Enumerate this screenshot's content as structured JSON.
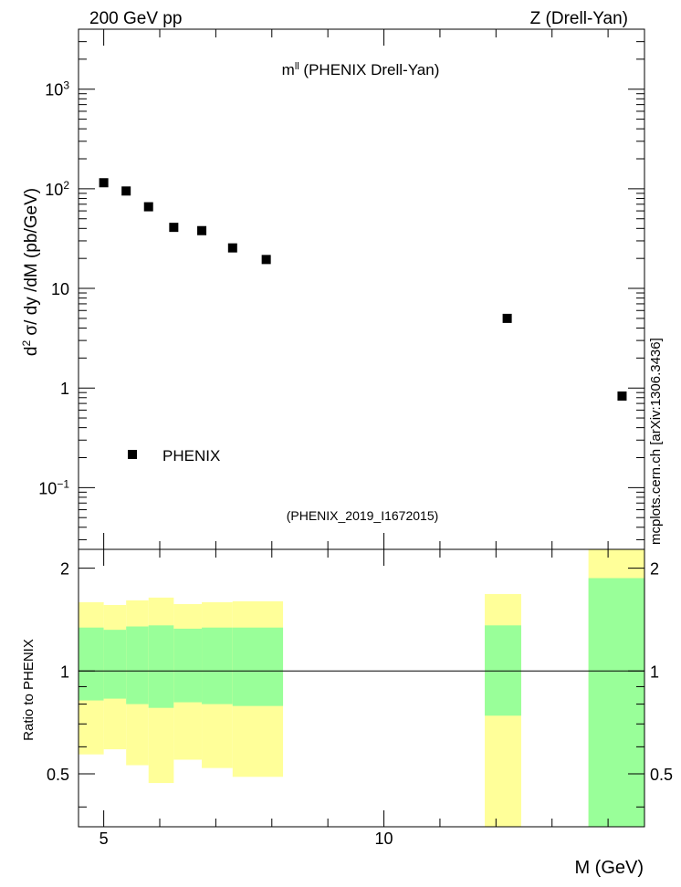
{
  "header": {
    "left": "200 GeV pp",
    "right": "Z (Drell-Yan)"
  },
  "side_label": "mcplots.cern.ch [arXiv:1306.3436]",
  "chart_data": [
    {
      "type": "scatter",
      "title": "m",
      "title_sup": "ll",
      "title_rest": " (PHENIX Drell-Yan)",
      "ylabel": "d",
      "ylabel_sup": "2",
      "ylabel_rest": " σ/ dy /dM (pb/GeV)",
      "xlabel": "M (GeV)",
      "yscale": "log",
      "xlim": [
        4.55,
        14.65
      ],
      "ylim": [
        0.024,
        4000
      ],
      "ytick_labels": [
        {
          "value": 1000,
          "base": "10",
          "exp": "3"
        },
        {
          "value": 100,
          "base": "10",
          "exp": "2"
        },
        {
          "value": 10,
          "base": "10",
          "exp": ""
        },
        {
          "value": 1,
          "base": "1",
          "exp": ""
        },
        {
          "value": 0.1,
          "base": "10",
          "exp": "−1"
        }
      ],
      "legend": {
        "label": "PHENIX",
        "placement": "lower-left"
      },
      "watermark": "(PHENIX_2019_I1672015)",
      "series": [
        {
          "name": "PHENIX",
          "x": [
            5.0,
            5.4,
            5.8,
            6.25,
            6.75,
            7.3,
            7.9,
            12.2,
            14.25
          ],
          "y": [
            115,
            95,
            66,
            41,
            38,
            25.5,
            19.5,
            5.0,
            0.83
          ]
        }
      ]
    },
    {
      "type": "area",
      "ylabel": "Ratio to PHENIX",
      "xlabel": "M (GeV)",
      "xlim": [
        4.55,
        14.65
      ],
      "ylim": [
        0.35,
        2.27
      ],
      "yticks": [
        "0.5",
        "1",
        "2"
      ],
      "xticks": [
        "5",
        "10"
      ],
      "reference_line": 1,
      "bands": [
        {
          "x0": 4.55,
          "x1": 5.0,
          "inner": [
            0.82,
            1.34
          ],
          "outer": [
            0.57,
            1.59
          ]
        },
        {
          "x0": 5.0,
          "x1": 5.4,
          "inner": [
            0.83,
            1.32
          ],
          "outer": [
            0.59,
            1.56
          ]
        },
        {
          "x0": 5.4,
          "x1": 5.8,
          "inner": [
            0.8,
            1.35
          ],
          "outer": [
            0.53,
            1.61
          ]
        },
        {
          "x0": 5.8,
          "x1": 6.25,
          "inner": [
            0.78,
            1.36
          ],
          "outer": [
            0.47,
            1.64
          ]
        },
        {
          "x0": 6.25,
          "x1": 6.75,
          "inner": [
            0.81,
            1.33
          ],
          "outer": [
            0.55,
            1.57
          ]
        },
        {
          "x0": 6.75,
          "x1": 7.3,
          "inner": [
            0.8,
            1.34
          ],
          "outer": [
            0.52,
            1.59
          ]
        },
        {
          "x0": 7.3,
          "x1": 8.2,
          "inner": [
            0.79,
            1.34
          ],
          "outer": [
            0.49,
            1.6
          ]
        },
        {
          "x0": 11.8,
          "x1": 12.45,
          "inner": [
            0.74,
            1.36
          ],
          "outer": [
            0.35,
            1.68
          ]
        },
        {
          "x0": 13.65,
          "x1": 14.65,
          "inner": [
            0.35,
            1.87
          ],
          "outer": [
            0.35,
            2.27
          ]
        }
      ]
    }
  ],
  "colors": {
    "inner_band": "#99ff99",
    "outer_band": "#ffff99",
    "marker": "#000000",
    "watermark": "#888888",
    "side_label": "#555555"
  }
}
